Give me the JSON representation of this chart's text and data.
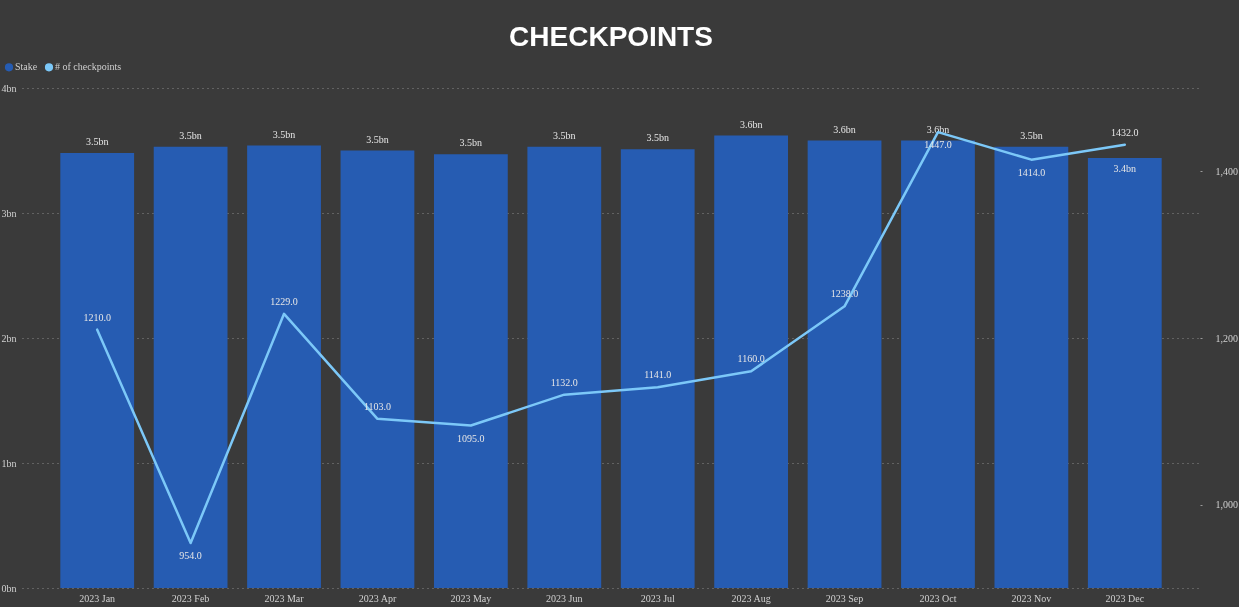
{
  "chart_data": {
    "type": "bar",
    "title": "CHECKPOINTS",
    "categories": [
      "2023 Jan",
      "2023 Feb",
      "2023 Mar",
      "2023 Apr",
      "2023 May",
      "2023 Jun",
      "2023 Jul",
      "2023 Aug",
      "2023 Sep",
      "2023 Oct",
      "2023 Nov",
      "2023 Dec"
    ],
    "series": [
      {
        "name": "Stake",
        "color": "#265cb2",
        "values": [
          3.48,
          3.53,
          3.54,
          3.5,
          3.47,
          3.53,
          3.51,
          3.62,
          3.58,
          3.58,
          3.53,
          3.44
        ],
        "value_labels": [
          "3.5bn",
          "3.5bn",
          "3.5bn",
          "3.5bn",
          "3.5bn",
          "3.5bn",
          "3.5bn",
          "3.6bn",
          "3.6bn",
          "3.6bn",
          "3.5bn",
          "3.4bn"
        ]
      },
      {
        "name": "# of checkpoints",
        "type": "line",
        "axis": "y2",
        "color": "#7cc8f8",
        "values": [
          1210,
          954,
          1229,
          1103,
          1095,
          1132,
          1141,
          1160,
          1238,
          1447,
          1414,
          1432
        ],
        "value_labels": [
          "1210.0",
          "954.0",
          "1229.0",
          "1103.0",
          "1095.0",
          "1132.0",
          "1141.0",
          "1160.0",
          "1238.0",
          "1447.0",
          "1414.0",
          "1432.0"
        ]
      }
    ],
    "ylim": [
      0,
      4
    ],
    "yticks": [
      {
        "value": 0,
        "label": "0bn"
      },
      {
        "value": 1,
        "label": "1bn"
      },
      {
        "value": 2,
        "label": "2bn"
      },
      {
        "value": 3,
        "label": "3bn"
      },
      {
        "value": 4,
        "label": "4bn"
      }
    ],
    "y2lim": [
      900,
      1500
    ],
    "y2ticks": [
      {
        "value": 1000,
        "label": "1,000"
      },
      {
        "value": 1200,
        "label": "1,200"
      },
      {
        "value": 1400,
        "label": "1,400"
      }
    ],
    "grid": "y",
    "legend": "top left"
  }
}
